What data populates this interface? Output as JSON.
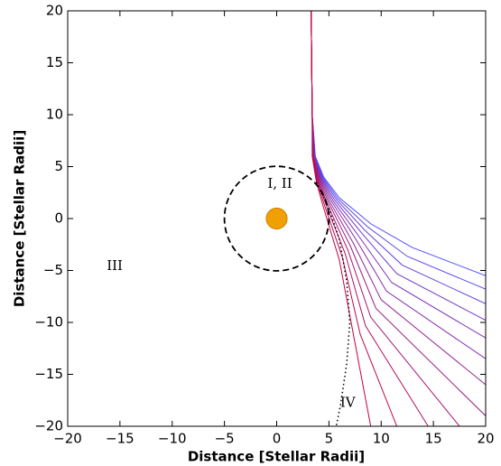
{
  "chart_data": {
    "type": "line",
    "xlabel": "Distance [Stellar Radii]",
    "ylabel": "Distance [Stellar Radii]",
    "xlim": [
      -20,
      20
    ],
    "ylim": [
      -20,
      20
    ],
    "xticks": [
      {
        "value": -20,
        "label": "−20"
      },
      {
        "value": -15,
        "label": "−15"
      },
      {
        "value": -10,
        "label": "−10"
      },
      {
        "value": -5,
        "label": "−5"
      },
      0,
      5,
      10,
      15,
      20
    ],
    "yticks": [
      {
        "value": -20,
        "label": "−20"
      },
      {
        "value": -15,
        "label": "−15"
      },
      {
        "value": -10,
        "label": "−10"
      },
      {
        "value": -5,
        "label": "−5"
      },
      0,
      5,
      10,
      15,
      20
    ],
    "series": [
      {
        "color": "#5050ff",
        "x": [
          3.3,
          3.4,
          3.7,
          4.5,
          6,
          9,
          13,
          20
        ],
        "y": [
          20,
          10,
          6,
          4,
          2,
          -0.5,
          -2.8,
          -5.5
        ]
      },
      {
        "color": "#5b49ed",
        "x": [
          3.3,
          3.4,
          3.67,
          4.44,
          5.86,
          8.73,
          12.5,
          20
        ],
        "y": [
          20,
          10,
          6,
          3.95,
          1.91,
          -0.82,
          -3.64,
          -6.8
        ]
      },
      {
        "color": "#6641dc",
        "x": [
          3.3,
          3.4,
          3.65,
          4.37,
          5.73,
          8.45,
          12,
          20
        ],
        "y": [
          20,
          10,
          6,
          3.91,
          1.82,
          -1.14,
          -4.47,
          -8.2
        ]
      },
      {
        "color": "#713aca",
        "x": [
          3.3,
          3.4,
          3.62,
          4.31,
          5.59,
          8.18,
          11.5,
          20
        ],
        "y": [
          20,
          10,
          6,
          3.86,
          1.73,
          -1.45,
          -5.31,
          -9.8
        ]
      },
      {
        "color": "#7c33b8",
        "x": [
          3.3,
          3.4,
          3.59,
          4.25,
          5.45,
          7.91,
          11,
          20
        ],
        "y": [
          20,
          10,
          6,
          3.82,
          1.64,
          -1.77,
          -6.15,
          -11.5
        ]
      },
      {
        "color": "#872ca6",
        "x": [
          3.3,
          3.4,
          3.56,
          4.18,
          5.32,
          7.64,
          10.5,
          20
        ],
        "y": [
          20,
          10,
          6,
          3.77,
          1.55,
          -2.09,
          -6.98,
          -13.5
        ]
      },
      {
        "color": "#912495",
        "x": [
          3.3,
          3.4,
          3.54,
          4.12,
          5.18,
          7.36,
          10,
          20
        ],
        "y": [
          20,
          10,
          6,
          3.73,
          1.45,
          -2.41,
          -7.82,
          -16
        ]
      },
      {
        "color": "#9c1d83",
        "x": [
          3.3,
          3.4,
          3.51,
          4.05,
          5.05,
          7.09,
          9.5,
          20
        ],
        "y": [
          20,
          10,
          6,
          3.68,
          1.36,
          -2.73,
          -8.65,
          -19
        ]
      },
      {
        "color": "#a71671",
        "x": [
          3.3,
          3.4,
          3.48,
          3.99,
          4.91,
          6.82,
          9,
          17.5
        ],
        "y": [
          20,
          10,
          6,
          3.64,
          1.27,
          -3.05,
          -9.49,
          -20
        ]
      },
      {
        "color": "#b20f5f",
        "x": [
          3.3,
          3.4,
          3.45,
          3.93,
          4.77,
          6.55,
          8.5,
          14.5
        ],
        "y": [
          20,
          10,
          6,
          3.59,
          1.18,
          -3.36,
          -10.33,
          -20
        ]
      },
      {
        "color": "#bd074e",
        "x": [
          3.3,
          3.4,
          3.43,
          3.86,
          4.64,
          6.27,
          8,
          11.5
        ],
        "y": [
          20,
          10,
          6,
          3.55,
          1.09,
          -3.68,
          -11.16,
          -20
        ]
      },
      {
        "color": "#c8003c",
        "x": [
          3.3,
          3.4,
          3.4,
          3.8,
          4.5,
          6,
          7.5,
          9
        ],
        "y": [
          20,
          10,
          6,
          3.5,
          1,
          -4,
          -12,
          -20
        ]
      }
    ],
    "dotted_curve": {
      "color": "#000000",
      "x": [
        3.8,
        5,
        6,
        6.7,
        7,
        6.7,
        6.1,
        5.7
      ],
      "y": [
        3.5,
        1,
        -2,
        -6,
        -10,
        -14,
        -18,
        -20
      ]
    },
    "boundary_circle": {
      "center": [
        0,
        0
      ],
      "radius": 5,
      "color": "#000000"
    },
    "star": {
      "center": [
        0,
        0
      ],
      "radius": 1,
      "color": "#f0a000"
    },
    "annotations": [
      {
        "text": "I, II",
        "x": 0.3,
        "y": 3.3
      },
      {
        "text": "III",
        "x": -15.5,
        "y": -4.6
      },
      {
        "text": "IV",
        "x": 6.8,
        "y": -17.8
      }
    ]
  }
}
